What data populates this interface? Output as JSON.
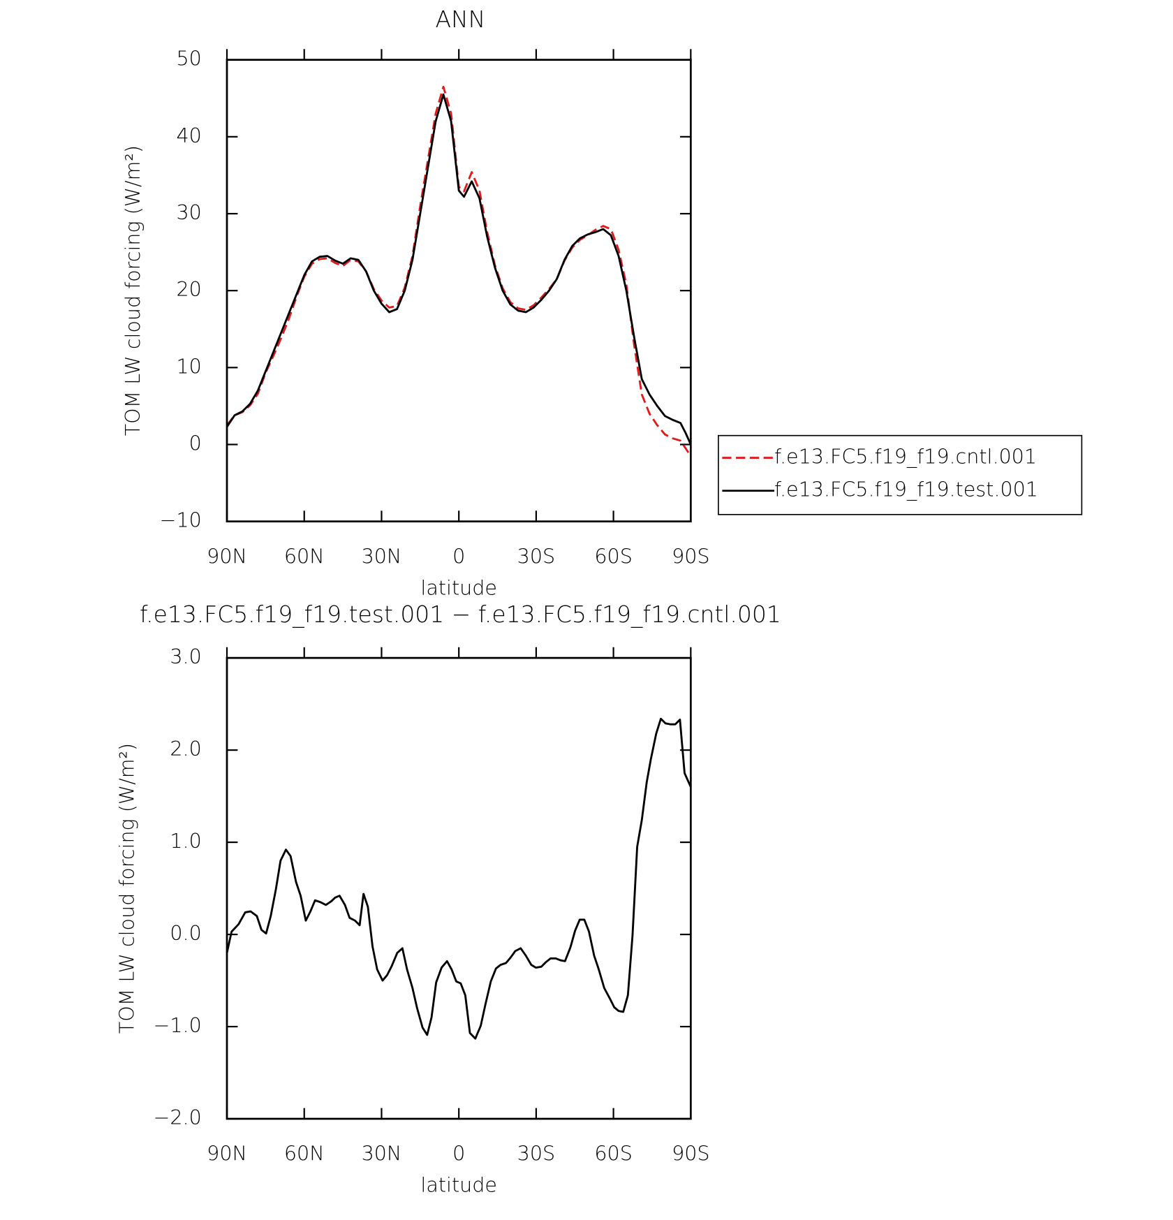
{
  "chart_data": [
    {
      "type": "line",
      "title": "ANN",
      "xlabel": "latitude",
      "ylabel": "TOM LW cloud forcing (W/m²)",
      "x": [
        90,
        87,
        84,
        81,
        78,
        75,
        72,
        69,
        66,
        63,
        60,
        57,
        54,
        51,
        48,
        45,
        42,
        39,
        36,
        33,
        30,
        27,
        24,
        21,
        18,
        15,
        12,
        9,
        6,
        3,
        0,
        -2,
        -5,
        -8,
        -11,
        -14,
        -17,
        -20,
        -23,
        -26,
        -29,
        -32,
        -35,
        -38,
        -41,
        -44,
        -47,
        -50,
        -53,
        -56,
        -59,
        -62,
        -65,
        -68,
        -71,
        -74,
        -77,
        -80,
        -83,
        -86,
        -88,
        -90
      ],
      "series": [
        {
          "name": "f.e13.FC5.f19_f19.cntl.001",
          "color": "#e31a1c",
          "dash": true,
          "values": [
            2.5,
            3.8,
            4.2,
            5.1,
            6.6,
            9.3,
            11.5,
            13.8,
            16.3,
            19.2,
            21.8,
            23.5,
            24.1,
            24.2,
            23.6,
            23.2,
            24,
            23.8,
            22.5,
            20.2,
            18.7,
            17.8,
            18,
            20.4,
            24.5,
            31,
            37,
            43,
            46.5,
            43,
            33.5,
            32.9,
            35.4,
            33,
            27.6,
            23.3,
            20.3,
            18.5,
            17.7,
            17.5,
            18.1,
            19.1,
            20.2,
            21.5,
            23.9,
            25.6,
            26.6,
            27.2,
            27.9,
            28.4,
            28,
            25.3,
            20.8,
            13,
            6.5,
            4,
            2.5,
            1.3,
            0.8,
            0.5,
            -0.5,
            -1.5
          ]
        },
        {
          "name": "f.e13.FC5.f19_f19.test.001",
          "color": "#000000",
          "dash": false,
          "values": [
            2.3,
            3.8,
            4.3,
            5.3,
            7,
            9.5,
            12,
            14.5,
            17,
            19.5,
            22,
            23.8,
            24.4,
            24.5,
            23.9,
            23.5,
            24.2,
            24,
            22.5,
            20,
            18.3,
            17.2,
            17.6,
            20,
            24,
            30,
            36,
            42,
            45.5,
            42,
            33,
            32.2,
            34.2,
            32,
            27,
            23,
            20,
            18.2,
            17.4,
            17.2,
            17.8,
            18.8,
            20,
            21.5,
            24,
            25.8,
            26.8,
            27.3,
            27.6,
            28,
            27.2,
            24.5,
            20,
            14,
            8.5,
            6.5,
            5,
            3.7,
            3.2,
            2.8,
            1.5,
            0
          ]
        }
      ],
      "xlim": [
        90,
        -90
      ],
      "xticks": [
        {
          "value": 90,
          "label": "90N"
        },
        {
          "value": 60,
          "label": "60N"
        },
        {
          "value": 30,
          "label": "30N"
        },
        0,
        {
          "value": -30,
          "label": "30S"
        },
        {
          "value": -60,
          "label": "60S"
        },
        {
          "value": -90,
          "label": "90S"
        }
      ],
      "ylim": [
        -10,
        50
      ],
      "yticks": [
        {
          "value": -10,
          "label": "−10"
        },
        0,
        10,
        20,
        30,
        40,
        50
      ]
    },
    {
      "type": "line",
      "title": "f.e13.FC5.f19_f19.test.001 − f.e13.FC5.f19_f19.cntl.001",
      "xlabel": "latitude",
      "ylabel": "TOM LW cloud forcing (W/m²)",
      "color": "#000000",
      "x": [
        90,
        88.2,
        85.5,
        82.9,
        80.8,
        78.4,
        76.6,
        74.8,
        73,
        71,
        69.2,
        67.1,
        65.3,
        63.2,
        61.4,
        59.4,
        57.6,
        55.8,
        53.7,
        51.6,
        49.5,
        48,
        46.3,
        44.2,
        42.4,
        40.3,
        38.5,
        37,
        35.3,
        33.5,
        31.7,
        29.6,
        27.8,
        26,
        23.9,
        21.9,
        20.1,
        18,
        16.2,
        14.1,
        12.3,
        10.6,
        8.8,
        6.7,
        4.6,
        2.8,
        1,
        -0.7,
        -2.5,
        -4.3,
        -6.4,
        -8.5,
        -10.3,
        -12.4,
        -14.4,
        -16.2,
        -18.3,
        -20.1,
        -21.9,
        -24,
        -26,
        -28.1,
        -29.9,
        -32,
        -33.8,
        -35.6,
        -37.6,
        -39.4,
        -41.2,
        -43.3,
        -45.1,
        -46.9,
        -48.7,
        -50.5,
        -52.5,
        -54.3,
        -56.4,
        -58.5,
        -60.3,
        -62,
        -63.8,
        -65.6,
        -67.4,
        -69.2,
        -71,
        -72.9,
        -74.5,
        -76.6,
        -78.4,
        -80.2,
        -82,
        -84,
        -85.8,
        -87.6,
        -90
      ],
      "values": [
        -0.2,
        0.03,
        0.11,
        0.24,
        0.25,
        0.2,
        0.05,
        0.01,
        0.2,
        0.49,
        0.8,
        0.92,
        0.85,
        0.57,
        0.42,
        0.15,
        0.25,
        0.37,
        0.35,
        0.32,
        0.36,
        0.4,
        0.42,
        0.32,
        0.18,
        0.15,
        0.1,
        0.44,
        0.3,
        -0.13,
        -0.38,
        -0.5,
        -0.44,
        -0.34,
        -0.2,
        -0.15,
        -0.38,
        -0.58,
        -0.8,
        -1.01,
        -1.09,
        -0.9,
        -0.52,
        -0.36,
        -0.29,
        -0.38,
        -0.51,
        -0.53,
        -0.66,
        -1.07,
        -1.13,
        -0.99,
        -0.76,
        -0.51,
        -0.37,
        -0.33,
        -0.31,
        -0.25,
        -0.18,
        -0.15,
        -0.23,
        -0.33,
        -0.36,
        -0.35,
        -0.3,
        -0.26,
        -0.26,
        -0.28,
        -0.29,
        -0.14,
        0.04,
        0.16,
        0.16,
        0.03,
        -0.23,
        -0.38,
        -0.58,
        -0.69,
        -0.79,
        -0.83,
        -0.84,
        -0.66,
        -0.01,
        0.95,
        1.24,
        1.65,
        1.9,
        2.18,
        2.34,
        2.29,
        2.28,
        2.28,
        2.33,
        1.75,
        1.6
      ],
      "xlim": [
        90,
        -90
      ],
      "xticks": [
        {
          "value": 90,
          "label": "90N"
        },
        {
          "value": 60,
          "label": "60N"
        },
        {
          "value": 30,
          "label": "30N"
        },
        0,
        {
          "value": -30,
          "label": "30S"
        },
        {
          "value": -60,
          "label": "60S"
        },
        {
          "value": -90,
          "label": "90S"
        }
      ],
      "ylim": [
        -2,
        3
      ],
      "yticks": [
        {
          "value": -2,
          "label": "−2.0"
        },
        {
          "value": -1,
          "label": "−1.0"
        },
        {
          "value": 0,
          "label": "0.0"
        },
        {
          "value": 1,
          "label": "1.0"
        },
        {
          "value": 2,
          "label": "2.0"
        },
        {
          "value": 3,
          "label": "3.0"
        }
      ]
    }
  ]
}
